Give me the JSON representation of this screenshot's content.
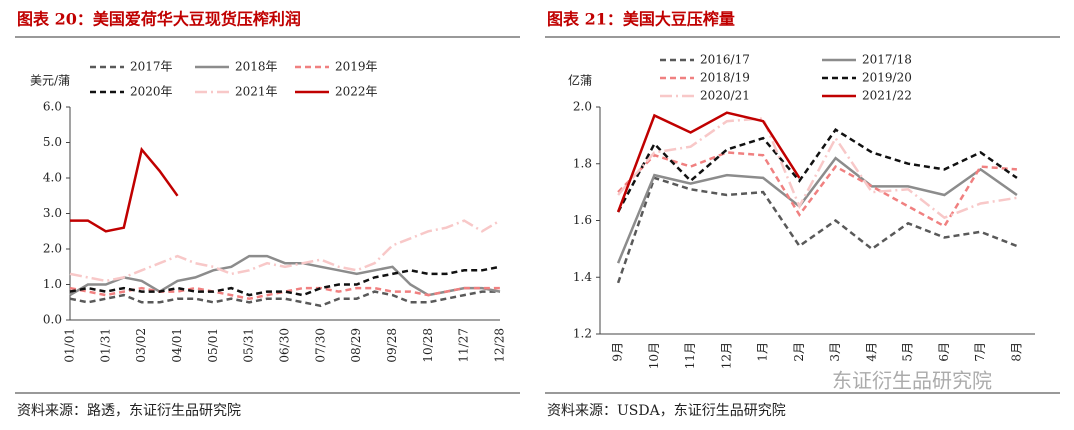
{
  "watermark": "东证衍生品研究院",
  "chart_data": [
    {
      "type": "line",
      "title": "图表 20：美国爱荷华大豆现货压榨利润",
      "source": "资料来源：路透，东证衍生品研究院",
      "ylabel": "美元/蒲",
      "categories": [
        "01/01",
        null,
        "01/31",
        null,
        "03/02",
        null,
        "04/01",
        null,
        "05/01",
        null,
        "05/31",
        null,
        "06/30",
        null,
        "07/30",
        null,
        "08/29",
        null,
        "09/28",
        null,
        "10/28",
        null,
        "11/27",
        null,
        "12/28"
      ],
      "ylim": [
        0,
        6
      ],
      "yticks": [
        {
          "value": 0,
          "label": "0.0"
        },
        {
          "value": 1,
          "label": "1.0"
        },
        {
          "value": 2,
          "label": "2.0"
        },
        {
          "value": 3,
          "label": "3.0"
        },
        {
          "value": 4,
          "label": "4.0"
        },
        {
          "value": 5,
          "label": "5.0"
        },
        {
          "value": 6,
          "label": "6.0"
        }
      ],
      "series": [
        {
          "name": "2017年",
          "color": "#595959",
          "dash": "dashed",
          "values": [
            0.6,
            0.5,
            0.6,
            0.7,
            0.5,
            0.5,
            0.6,
            0.6,
            0.5,
            0.6,
            0.5,
            0.6,
            0.6,
            0.5,
            0.4,
            0.6,
            0.6,
            0.8,
            0.7,
            0.5,
            0.5,
            0.6,
            0.7,
            0.8,
            0.8
          ]
        },
        {
          "name": "2018年",
          "color": "#8c8c8c",
          "dash": "solid",
          "values": [
            0.7,
            1.0,
            1.0,
            1.2,
            1.1,
            0.8,
            1.1,
            1.2,
            1.4,
            1.5,
            1.8,
            1.8,
            1.6,
            1.6,
            1.5,
            1.4,
            1.3,
            1.4,
            1.5,
            1.0,
            0.7,
            0.8,
            0.9,
            0.9,
            0.8
          ]
        },
        {
          "name": "2019年",
          "color": "#f08080",
          "dash": "dashed",
          "values": [
            0.9,
            0.8,
            0.7,
            0.8,
            0.9,
            0.8,
            0.8,
            0.9,
            0.8,
            0.7,
            0.6,
            0.7,
            0.8,
            0.9,
            0.9,
            0.8,
            0.9,
            0.9,
            0.8,
            0.8,
            0.7,
            0.8,
            0.9,
            0.9,
            0.9
          ]
        },
        {
          "name": "2020年",
          "color": "#111111",
          "dash": "dashed",
          "values": [
            0.8,
            0.9,
            0.8,
            0.9,
            0.8,
            0.8,
            0.9,
            0.8,
            0.8,
            0.9,
            0.7,
            0.8,
            0.8,
            0.7,
            0.9,
            1.0,
            1.0,
            1.2,
            1.3,
            1.4,
            1.3,
            1.3,
            1.4,
            1.4,
            1.5
          ]
        },
        {
          "name": "2021年",
          "color": "#f8c8c8",
          "dash": "dashdot",
          "values": [
            1.3,
            1.2,
            1.1,
            1.2,
            1.4,
            1.6,
            1.8,
            1.6,
            1.5,
            1.3,
            1.4,
            1.6,
            1.5,
            1.6,
            1.7,
            1.5,
            1.4,
            1.6,
            2.1,
            2.3,
            2.5,
            2.6,
            2.8,
            2.5,
            2.8
          ]
        },
        {
          "name": "2022年",
          "color": "#c00000",
          "dash": "solid",
          "values": [
            2.8,
            2.8,
            2.5,
            2.6,
            4.8,
            4.2,
            3.5,
            null,
            null,
            null,
            null,
            null,
            null,
            null,
            null,
            null,
            null,
            null,
            null,
            null,
            null,
            null,
            null,
            null,
            null
          ]
        }
      ]
    },
    {
      "type": "line",
      "title": "图表 21：美国大豆压榨量",
      "source": "资料来源：USDA，东证衍生品研究院",
      "ylabel": "亿蒲",
      "categories": [
        "9月",
        "10月",
        "11月",
        "12月",
        "1月",
        "2月",
        "3月",
        "4月",
        "5月",
        "6月",
        "7月",
        "8月"
      ],
      "ylim": [
        1.2,
        2.0
      ],
      "yticks": [
        1.2,
        1.4,
        1.6,
        1.8,
        {
          "value": 2,
          "label": "2.0"
        }
      ],
      "series": [
        {
          "name": "2016/17",
          "color": "#595959",
          "dash": "dashed",
          "values": [
            1.38,
            1.75,
            1.71,
            1.69,
            1.7,
            1.51,
            1.6,
            1.5,
            1.59,
            1.54,
            1.56,
            1.51
          ]
        },
        {
          "name": "2017/18",
          "color": "#8c8c8c",
          "dash": "solid",
          "values": [
            1.45,
            1.76,
            1.73,
            1.76,
            1.75,
            1.65,
            1.82,
            1.72,
            1.72,
            1.69,
            1.78,
            1.69
          ]
        },
        {
          "name": "2018/19",
          "color": "#f08080",
          "dash": "dashed",
          "values": [
            1.7,
            1.83,
            1.79,
            1.84,
            1.83,
            1.62,
            1.79,
            1.72,
            1.65,
            1.58,
            1.79,
            1.78
          ]
        },
        {
          "name": "2019/20",
          "color": "#111111",
          "dash": "dashed",
          "values": [
            1.63,
            1.87,
            1.74,
            1.85,
            1.89,
            1.74,
            1.92,
            1.84,
            1.8,
            1.78,
            1.84,
            1.75
          ]
        },
        {
          "name": "2020/21",
          "color": "#f8c8c8",
          "dash": "dashdot",
          "values": [
            1.69,
            1.84,
            1.86,
            1.95,
            1.96,
            1.65,
            1.89,
            1.7,
            1.71,
            1.61,
            1.66,
            1.68
          ]
        },
        {
          "name": "2021/22",
          "color": "#c00000",
          "dash": "solid",
          "values": [
            1.63,
            1.97,
            1.91,
            1.98,
            1.95,
            1.75,
            null,
            null,
            null,
            null,
            null,
            null
          ]
        }
      ]
    }
  ]
}
